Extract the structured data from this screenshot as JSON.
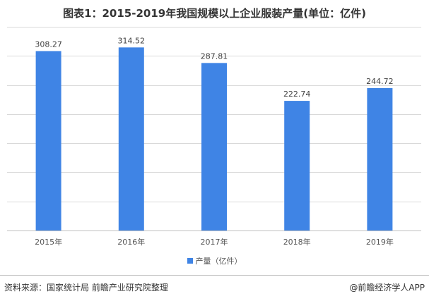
{
  "title": "图表1：2015-2019年我国规模以上企业服装产量(单位：亿件)",
  "source": "资料来源：国家统计局 前瞻产业研究院整理",
  "brand": "@前瞻经济学人APP",
  "colors": {
    "bar": "#3f84e5",
    "grid": "#d9d9d9",
    "axis": "#bfbfbf"
  },
  "chart_data": {
    "type": "bar",
    "categories": [
      "2015年",
      "2016年",
      "2017年",
      "2018年",
      "2019年"
    ],
    "series": [
      {
        "name": "产量（亿件）",
        "values": [
          308.27,
          314.52,
          287.81,
          222.74,
          244.72
        ]
      }
    ],
    "data_labels": [
      "308.27",
      "314.52",
      "287.81",
      "222.74",
      "244.72"
    ],
    "ylim": [
      0,
      350
    ],
    "grid": true,
    "legend_position": "bottom"
  }
}
